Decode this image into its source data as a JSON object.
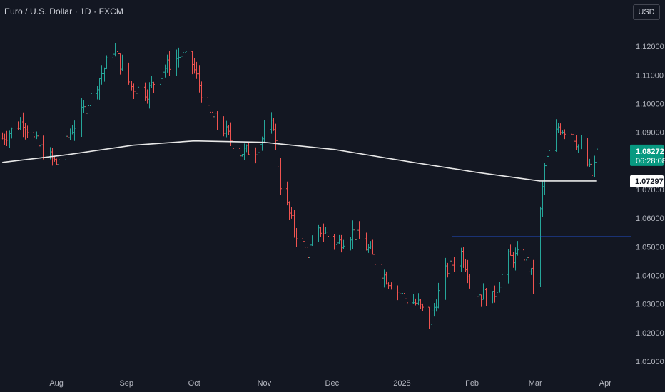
{
  "header": {
    "symbol_title": "Euro / U.S. Dollar · 1D · FXCM",
    "currency": "USD"
  },
  "colors": {
    "background": "#131722",
    "up": "#26a69a",
    "down": "#ef5350",
    "ma_line": "#e8e8e8",
    "level_line": "#2962ff",
    "price_label_bg": "#089981",
    "ma_label_bg": "#ffffff"
  },
  "chart_data": {
    "type": "ohlc",
    "price_axis": {
      "ticks": [
        "1.12000",
        "1.11000",
        "1.10000",
        "1.09000",
        "1.08000",
        "1.07000",
        "1.06000",
        "1.05000",
        "1.04000",
        "1.03000",
        "1.02000",
        "1.01000"
      ],
      "range": [
        1.0055,
        1.1275
      ]
    },
    "time_axis": {
      "ticks": [
        {
          "label": "Aug",
          "date": "2024-08-01"
        },
        {
          "label": "Sep",
          "date": "2024-09-01"
        },
        {
          "label": "Oct",
          "date": "2024-10-01"
        },
        {
          "label": "Nov",
          "date": "2024-11-01"
        },
        {
          "label": "Dec",
          "date": "2024-12-01"
        },
        {
          "label": "2025",
          "date": "2025-01-01"
        },
        {
          "label": "Feb",
          "date": "2025-02-01"
        },
        {
          "label": "Mar",
          "date": "2025-03-01"
        },
        {
          "label": "Apr",
          "date": "2025-04-01"
        }
      ],
      "range": [
        "2024-07-07",
        "2025-04-11"
      ]
    },
    "close_path": [
      [
        "2024-07-08",
        1.088
      ],
      [
        "2024-07-17",
        1.094
      ],
      [
        "2024-07-24",
        1.085
      ],
      [
        "2024-08-01",
        1.079
      ],
      [
        "2024-08-07",
        1.09
      ],
      [
        "2024-08-14",
        1.099
      ],
      [
        "2024-08-20",
        1.109
      ],
      [
        "2024-08-26",
        1.119
      ],
      [
        "2024-09-03",
        1.106
      ],
      [
        "2024-09-10",
        1.104
      ],
      [
        "2024-09-17",
        1.112
      ],
      [
        "2024-09-25",
        1.117
      ],
      [
        "2024-09-30",
        1.114
      ],
      [
        "2024-10-07",
        1.097
      ],
      [
        "2024-10-14",
        1.091
      ],
      [
        "2024-10-21",
        1.083
      ],
      [
        "2024-10-28",
        1.084
      ],
      [
        "2024-11-01",
        1.089
      ],
      [
        "2024-11-05",
        1.093
      ],
      [
        "2024-11-08",
        1.072
      ],
      [
        "2024-11-14",
        1.056
      ],
      [
        "2024-11-20",
        1.048
      ],
      [
        "2024-11-26",
        1.056
      ],
      [
        "2024-12-03",
        1.051
      ],
      [
        "2024-12-10",
        1.055
      ],
      [
        "2024-12-17",
        1.049
      ],
      [
        "2024-12-24",
        1.04
      ],
      [
        "2025-01-02",
        1.032
      ],
      [
        "2025-01-08",
        1.03
      ],
      [
        "2025-01-13",
        1.024
      ],
      [
        "2025-01-20",
        1.041
      ],
      [
        "2025-01-27",
        1.048
      ],
      [
        "2025-02-03",
        1.034
      ],
      [
        "2025-02-10",
        1.032
      ],
      [
        "2025-02-17",
        1.046
      ],
      [
        "2025-02-24",
        1.047
      ],
      [
        "2025-02-28",
        1.038
      ],
      [
        "2025-03-05",
        1.078
      ],
      [
        "2025-03-11",
        1.092
      ],
      [
        "2025-03-17",
        1.09
      ],
      [
        "2025-03-21",
        1.084
      ],
      [
        "2025-03-26",
        1.075
      ],
      [
        "2025-03-28",
        1.0827
      ]
    ],
    "moving_average": [
      [
        "2024-07-08",
        1.0795
      ],
      [
        "2024-08-06",
        1.0822
      ],
      [
        "2024-09-04",
        1.0855
      ],
      [
        "2024-10-01",
        1.087
      ],
      [
        "2024-11-01",
        1.0865
      ],
      [
        "2024-12-02",
        1.084
      ],
      [
        "2025-01-02",
        1.08
      ],
      [
        "2025-02-03",
        1.076
      ],
      [
        "2025-03-03",
        1.073
      ],
      [
        "2025-03-28",
        1.073
      ]
    ],
    "horizontal_level": {
      "from": "2025-01-23",
      "price": 1.0535
    },
    "last_price": {
      "value": "1.08272",
      "countdown": "06:28:08"
    },
    "ma_value": "1.07297",
    "title": "Euro / U.S. Dollar · 1D · FXCM"
  }
}
